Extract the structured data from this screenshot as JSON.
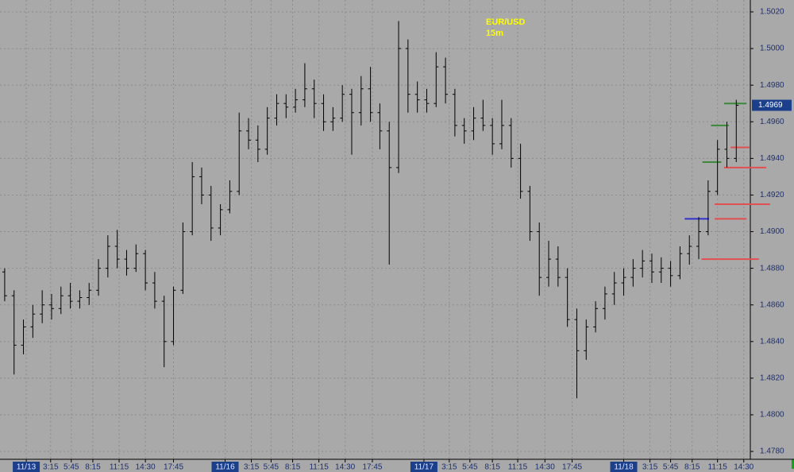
{
  "chart_data": {
    "type": "ohlc",
    "title": "EUR/USD",
    "subtitle": "15m",
    "color": "#000000",
    "background": "#a9a9a9",
    "grid": true,
    "xlim": [
      0,
      80
    ],
    "ylim": [
      1.47757,
      1.50265
    ],
    "yticks": [
      {
        "value": 1.478,
        "label": "1.4780"
      },
      {
        "value": 1.48,
        "label": "1.4800"
      },
      {
        "value": 1.482,
        "label": "1.4820"
      },
      {
        "value": 1.484,
        "label": "1.4840"
      },
      {
        "value": 1.486,
        "label": "1.4860"
      },
      {
        "value": 1.488,
        "label": "1.4880"
      },
      {
        "value": 1.49,
        "label": "1.4900"
      },
      {
        "value": 1.492,
        "label": "1.4920"
      },
      {
        "value": 1.494,
        "label": "1.4940"
      },
      {
        "value": 1.496,
        "label": "1.4960"
      },
      {
        "value": 1.498,
        "label": "1.4980"
      },
      {
        "value": 1.5,
        "label": "1.5000"
      },
      {
        "value": 1.502,
        "label": "1.5020"
      }
    ],
    "xticks": [
      {
        "value": 2.8,
        "label": "11/13",
        "highlight": true
      },
      {
        "value": 5.4,
        "label": "3:15"
      },
      {
        "value": 7.6,
        "label": "5:45"
      },
      {
        "value": 9.9,
        "label": "8:15"
      },
      {
        "value": 12.7,
        "label": "11:15"
      },
      {
        "value": 15.5,
        "label": "14:30"
      },
      {
        "value": 18.5,
        "label": "17:45"
      },
      {
        "value": 24,
        "label": "11/16",
        "highlight": true
      },
      {
        "value": 26.8,
        "label": "3:15"
      },
      {
        "value": 28.9,
        "label": "5:45"
      },
      {
        "value": 31.2,
        "label": "8:15"
      },
      {
        "value": 34,
        "label": "11:15"
      },
      {
        "value": 36.8,
        "label": "14:30"
      },
      {
        "value": 39.7,
        "label": "17:45"
      },
      {
        "value": 45.2,
        "label": "11/17",
        "highlight": true
      },
      {
        "value": 47.9,
        "label": "3:15"
      },
      {
        "value": 50.1,
        "label": "5:45"
      },
      {
        "value": 52.5,
        "label": "8:15"
      },
      {
        "value": 55.2,
        "label": "11:15"
      },
      {
        "value": 58.1,
        "label": "14:30"
      },
      {
        "value": 61,
        "label": "17:45"
      },
      {
        "value": 66.5,
        "label": "11/18",
        "highlight": true
      },
      {
        "value": 69.3,
        "label": "3:15"
      },
      {
        "value": 71.5,
        "label": "5:45"
      },
      {
        "value": 73.8,
        "label": "8:15"
      },
      {
        "value": 76.5,
        "label": "11:15"
      },
      {
        "value": 79.3,
        "label": "14:30"
      }
    ],
    "last_price": {
      "value": 1.4969,
      "label": "1.4969"
    },
    "open": [
      1.4878,
      1.4865,
      1.4838,
      1.4848,
      1.4855,
      1.486,
      1.4858,
      1.4865,
      1.4862,
      1.4864,
      1.4868,
      1.488,
      1.4892,
      1.4885,
      1.488,
      1.4888,
      1.4872,
      1.4862,
      1.484,
      1.4868,
      1.49,
      1.493,
      1.492,
      1.4902,
      1.4912,
      1.4922,
      1.4955,
      1.495,
      1.4945,
      1.4962,
      1.497,
      1.4968,
      1.4972,
      1.4978,
      1.497,
      1.496,
      1.4962,
      1.4975,
      1.4965,
      1.4978,
      1.4965,
      1.4955,
      1.4935,
      1.5,
      1.4975,
      1.4972,
      1.497,
      1.499,
      1.4975,
      1.4958,
      1.4955,
      1.4962,
      1.4958,
      1.4948,
      1.4958,
      1.494,
      1.4922,
      1.49,
      1.4875,
      1.4885,
      1.4875,
      1.4852,
      1.4835,
      1.4848,
      1.4858,
      1.4866,
      1.4872,
      1.4875,
      1.488,
      1.4884,
      1.4878,
      1.488,
      1.4876,
      1.4888,
      1.4892,
      1.49,
      1.4922,
      1.4945,
      1.494
    ],
    "high": [
      1.488,
      1.4868,
      1.4852,
      1.486,
      1.4868,
      1.4866,
      1.487,
      1.4872,
      1.4868,
      1.4872,
      1.4885,
      1.4898,
      1.4901,
      1.489,
      1.4893,
      1.489,
      1.4878,
      1.4865,
      1.487,
      1.4905,
      1.4938,
      1.4935,
      1.4925,
      1.4915,
      1.4928,
      1.4965,
      1.4962,
      1.4958,
      1.4968,
      1.4975,
      1.4975,
      1.4978,
      1.4992,
      1.4983,
      1.4975,
      1.4968,
      1.498,
      1.4978,
      1.4985,
      1.499,
      1.497,
      1.496,
      1.5015,
      1.5005,
      1.4982,
      1.4978,
      1.4998,
      1.4995,
      1.4978,
      1.4962,
      1.4968,
      1.4972,
      1.4962,
      1.4972,
      1.4962,
      1.4948,
      1.4925,
      1.4905,
      1.4895,
      1.4892,
      1.488,
      1.4858,
      1.4852,
      1.4862,
      1.487,
      1.4878,
      1.488,
      1.4885,
      1.489,
      1.4888,
      1.4886,
      1.4884,
      1.4892,
      1.4898,
      1.4908,
      1.4928,
      1.495,
      1.496,
      1.4972
    ],
    "low": [
      1.4862,
      1.4822,
      1.4833,
      1.4842,
      1.485,
      1.4852,
      1.4855,
      1.4858,
      1.4858,
      1.486,
      1.4865,
      1.4875,
      1.488,
      1.4876,
      1.4878,
      1.4868,
      1.4858,
      1.4826,
      1.4838,
      1.4866,
      1.4898,
      1.4915,
      1.4895,
      1.4898,
      1.491,
      1.492,
      1.4945,
      1.4938,
      1.4942,
      1.4958,
      1.4962,
      1.4965,
      1.4968,
      1.4962,
      1.4955,
      1.4955,
      1.496,
      1.4942,
      1.4958,
      1.496,
      1.4945,
      1.4882,
      1.4932,
      1.4965,
      1.4965,
      1.4965,
      1.4968,
      1.497,
      1.4952,
      1.4948,
      1.495,
      1.4955,
      1.4942,
      1.4945,
      1.4935,
      1.4918,
      1.4895,
      1.4865,
      1.487,
      1.487,
      1.4848,
      1.4809,
      1.483,
      1.4845,
      1.4852,
      1.486,
      1.4865,
      1.487,
      1.4875,
      1.4872,
      1.4872,
      1.487,
      1.4874,
      1.4882,
      1.4885,
      1.4898,
      1.492,
      1.4935,
      1.4938
    ],
    "close": [
      1.4865,
      1.4838,
      1.4848,
      1.4855,
      1.486,
      1.4858,
      1.4865,
      1.4862,
      1.4864,
      1.4868,
      1.488,
      1.4892,
      1.4885,
      1.488,
      1.4888,
      1.4872,
      1.4862,
      1.484,
      1.4868,
      1.49,
      1.493,
      1.492,
      1.4902,
      1.4912,
      1.4922,
      1.4955,
      1.495,
      1.4945,
      1.4962,
      1.497,
      1.4968,
      1.4972,
      1.4978,
      1.497,
      1.496,
      1.4962,
      1.4975,
      1.4965,
      1.4978,
      1.4965,
      1.4955,
      1.4935,
      1.5,
      1.4975,
      1.4972,
      1.497,
      1.499,
      1.4975,
      1.4958,
      1.4955,
      1.4962,
      1.4958,
      1.4948,
      1.4958,
      1.494,
      1.4922,
      1.49,
      1.4875,
      1.4885,
      1.4875,
      1.4852,
      1.4835,
      1.4848,
      1.4858,
      1.4866,
      1.4872,
      1.4875,
      1.488,
      1.4884,
      1.4878,
      1.488,
      1.4876,
      1.4888,
      1.4892,
      1.49,
      1.4922,
      1.4945,
      1.494,
      1.4969
    ],
    "levels": [
      {
        "value": 1.497,
        "color": "#3a8a3a",
        "x": [
          77.2,
          79.6
        ]
      },
      {
        "value": 1.4958,
        "color": "#3a8a3a",
        "x": [
          75.8,
          77.7
        ]
      },
      {
        "value": 1.4938,
        "color": "#3a8a3a",
        "x": [
          74.9,
          76.9
        ]
      },
      {
        "value": 1.4946,
        "color": "#e05050",
        "x": [
          77.9,
          79.9
        ]
      },
      {
        "value": 1.4935,
        "color": "#e05050",
        "x": [
          77.2,
          81.7
        ]
      },
      {
        "value": 1.4915,
        "color": "#e05050",
        "x": [
          76.2,
          82.1
        ]
      },
      {
        "value": 1.4907,
        "color": "#e05050",
        "x": [
          76.2,
          79.6
        ]
      },
      {
        "value": 1.4885,
        "color": "#e05050",
        "x": [
          74.8,
          80.9
        ]
      },
      {
        "value": 1.4907,
        "color": "#3333cc",
        "x": [
          73,
          75.6
        ]
      }
    ]
  }
}
